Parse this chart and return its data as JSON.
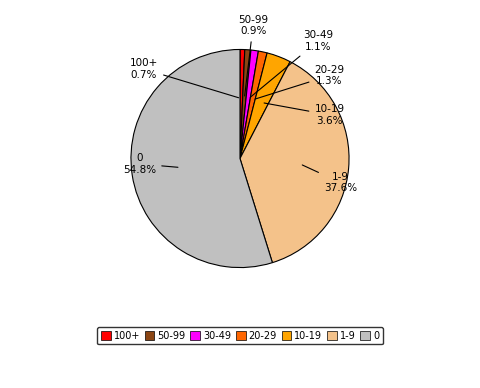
{
  "labels": [
    "100+",
    "50-99",
    "30-49",
    "20-29",
    "10-19",
    "1-9",
    "0"
  ],
  "values": [
    0.7,
    0.9,
    1.1,
    1.3,
    3.6,
    37.6,
    54.8
  ],
  "colors": [
    "#ff0000",
    "#8b4513",
    "#ff00ff",
    "#ff6600",
    "#ffa500",
    "#f4c28a",
    "#c0c0c0"
  ],
  "legend_labels": [
    "100+",
    "50-99",
    "30-49",
    "20-29",
    "10-19",
    "1-9",
    "0"
  ],
  "background_color": "#ffffff",
  "startangle": 90,
  "figsize": [
    4.8,
    3.88
  ],
  "dpi": 100
}
